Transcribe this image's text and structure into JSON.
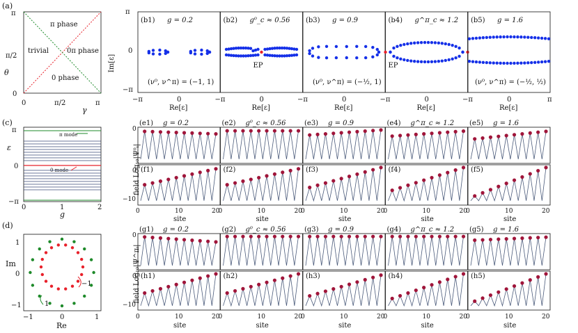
{
  "panel_a": {
    "label": "(a)",
    "ylabel": "θ",
    "xlabel": "γ",
    "xticks": [
      "0",
      "π/2",
      "π"
    ],
    "yticks": [
      "0",
      "π/2",
      "π"
    ],
    "regions": [
      "π phase",
      "trivial",
      "0π phase",
      "0 phase"
    ]
  },
  "panel_b": {
    "ylabel": "Im[ε]",
    "xlabel": "Re[ε]",
    "xticks": [
      "−π",
      "0",
      "π"
    ],
    "yticks": [
      "−π",
      "0",
      "π"
    ],
    "titles": [
      {
        "label": "(b1)",
        "param": "g = 0.2"
      },
      {
        "label": "(b2)",
        "param": "g⁰_c ≈ 0.56"
      },
      {
        "label": "(b3)",
        "param": "g = 0.9"
      },
      {
        "label": "(b4)",
        "param": "g^π_c ≈ 1.2"
      },
      {
        "label": "(b5)",
        "param": "g = 1.6"
      }
    ],
    "invariants": [
      "(ν⁰, ν^π) = (−1, 1)",
      "(ν⁰, ν^π) = (−½, 1)",
      "(ν⁰, ν^π) = (−½, ½)"
    ],
    "ep_label": "EP"
  },
  "panel_c": {
    "label": "(c)",
    "ylabel": "ε",
    "xlabel": "g",
    "xticks": [
      "0",
      "1",
      "2"
    ],
    "yticks": [
      "π",
      "0",
      "−π"
    ],
    "pi_mode": "π mode",
    "zero_mode": "0 mode"
  },
  "panel_d": {
    "label": "(d)",
    "ylabel": "Im",
    "xlabel": "Re",
    "xticks": [
      "−1",
      "0",
      "1"
    ],
    "yticks": [
      "1",
      "0",
      "−1"
    ],
    "winding_red": "−1",
    "winding_green": "1"
  },
  "panel_e": {
    "titles": [
      {
        "label": "(e1)",
        "param": "g = 0.2"
      },
      {
        "label": "(e2)",
        "param": "g⁰_c ≈ 0.56"
      },
      {
        "label": "(e3)",
        "param": "g = 0.9"
      },
      {
        "label": "(e4)",
        "param": "g^π_c ≈ 1.2"
      },
      {
        "label": "(e5)",
        "param": "g = 1.6"
      }
    ],
    "f_labels": [
      "(f1)",
      "(f2)",
      "(f3)",
      "(f4)",
      "(f5)"
    ],
    "ylabel": "field Log₁₀|Ψ⁰ᵢ|",
    "yticks": [
      "0",
      "−10"
    ],
    "xticks": [
      "0",
      "10",
      "20"
    ],
    "xlabel": "site"
  },
  "panel_g": {
    "titles": [
      {
        "label": "(g1)",
        "param": "g = 0.2"
      },
      {
        "label": "(g2)",
        "param": "g⁰_c ≈ 0.56"
      },
      {
        "label": "(g3)",
        "param": "g = 0.9"
      },
      {
        "label": "(g4)",
        "param": "g^π_c ≈ 1.2"
      },
      {
        "label": "(g5)",
        "param": "g = 1.6"
      }
    ],
    "h_labels": [
      "(h1)",
      "(h2)",
      "(h3)",
      "(h4)",
      "(h5)"
    ],
    "ylabel": "field Log₁₀|Ψ^πᵢ|",
    "yticks": [
      "0",
      "−10"
    ],
    "xticks": [
      "0",
      "10",
      "20"
    ],
    "xlabel": "site"
  },
  "colors": {
    "blue": "#1530e8",
    "red": "#e8202a",
    "green": "#1e8a2a",
    "line": "#4a5a7a",
    "dot": "#a0153a"
  }
}
